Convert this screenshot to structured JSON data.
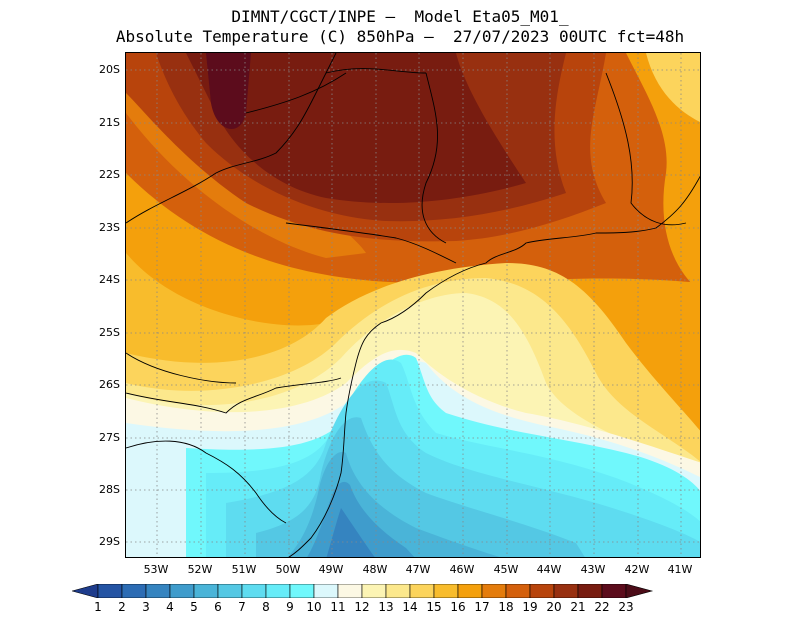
{
  "title": {
    "line1": "DIMNT/CGCT/INPE –  Model Eta05_M01_",
    "line2": "Absolute Temperature (C) 850hPa –  27/07/2023 00UTC fct=48h"
  },
  "axes": {
    "lat_labels": [
      "20S",
      "21S",
      "22S",
      "23S",
      "24S",
      "25S",
      "26S",
      "27S",
      "28S",
      "29S"
    ],
    "lon_labels": [
      "53W",
      "52W",
      "51W",
      "50W",
      "49W",
      "48W",
      "47W",
      "46W",
      "45W",
      "44W",
      "43W",
      "42W",
      "41W"
    ]
  },
  "colorbar": {
    "levels": [
      "1",
      "2",
      "3",
      "4",
      "5",
      "6",
      "7",
      "8",
      "9",
      "10",
      "11",
      "12",
      "13",
      "14",
      "15",
      "16",
      "17",
      "18",
      "19",
      "20",
      "21",
      "22",
      "23"
    ],
    "colors": [
      "#1e3c8c",
      "#2454a4",
      "#2c6cb4",
      "#3584c0",
      "#3f9ccc",
      "#4ab4d8",
      "#54c8e4",
      "#5edcf0",
      "#66ecf8",
      "#70f8fc",
      "#dcf8fc",
      "#fcf8e4",
      "#fcf4b4",
      "#fce88c",
      "#fcd45c",
      "#f8bc2c",
      "#f4a00c",
      "#e47c0c",
      "#d4600c",
      "#b8440c",
      "#983010",
      "#781c10",
      "#5c0c1c"
    ],
    "left_arrow_color": "#1e3c8c",
    "right_arrow_color": "#4c0c18"
  }
}
